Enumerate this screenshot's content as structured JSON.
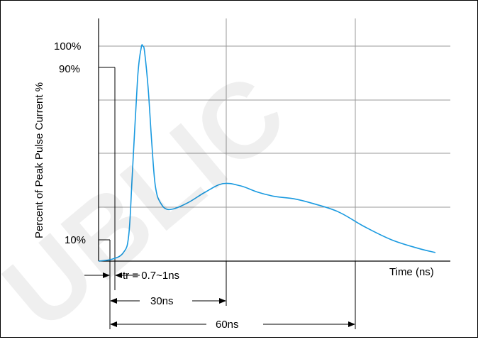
{
  "chart_data": {
    "type": "line",
    "title": "",
    "xlabel": "Time (ns)",
    "ylabel": "Percent of Peak Pulse Current %",
    "ytick_labels": [
      "100%",
      "90%",
      "10%"
    ],
    "watermark": "UBLIC",
    "grid": true,
    "series": [
      {
        "color": "#1a9ae0",
        "x": [
          0,
          8,
          14,
          17,
          19,
          22,
          24,
          25,
          26,
          28,
          30,
          32,
          35,
          40,
          50,
          60,
          70,
          80,
          90,
          100,
          110,
          120,
          135,
          150,
          165,
          180,
          190
        ],
        "y": [
          0,
          1,
          4,
          12,
          40,
          85,
          99,
          100,
          97,
          80,
          55,
          35,
          27,
          24,
          27,
          32,
          36,
          35,
          32,
          30,
          29,
          27,
          23,
          16,
          10,
          6,
          4
        ]
      }
    ],
    "annotations": [
      {
        "text": "tr = 0.7~1ns"
      },
      {
        "text": "30ns"
      },
      {
        "text": "60ns"
      }
    ]
  }
}
